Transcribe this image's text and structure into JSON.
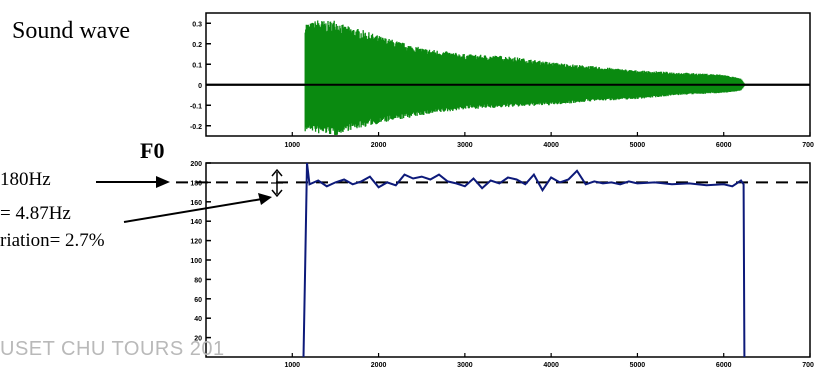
{
  "chart_data": [
    {
      "type": "line",
      "title": "Sound wave",
      "description_only": false,
      "x_ticks": [
        "1000",
        "2000",
        "3000",
        "4000",
        "5000",
        "6000",
        "7000"
      ],
      "y_ticks": [
        "0.3",
        "0.2",
        "0.1",
        "0",
        "-0.1",
        "-0.2"
      ],
      "xlim": [
        0,
        7000
      ],
      "ylim": [
        -0.25,
        0.35
      ],
      "envelope": {
        "x": [
          1150,
          1200,
          1300,
          1400,
          1500,
          1600,
          1800,
          2000,
          2500,
          3000,
          3500,
          4000,
          4500,
          5000,
          5500,
          6000,
          6200,
          6250
        ],
        "upper": [
          0.31,
          0.3,
          0.32,
          0.31,
          0.32,
          0.29,
          0.27,
          0.24,
          0.18,
          0.15,
          0.14,
          0.11,
          0.09,
          0.07,
          0.06,
          0.05,
          0.03,
          0.0
        ],
        "lower": [
          -0.23,
          -0.22,
          -0.24,
          -0.24,
          -0.25,
          -0.23,
          -0.21,
          -0.19,
          -0.15,
          -0.12,
          -0.11,
          -0.1,
          -0.08,
          -0.07,
          -0.05,
          -0.04,
          -0.03,
          0.0
        ]
      },
      "series_color": "#0a8a10"
    },
    {
      "type": "line",
      "title": "F0",
      "x_ticks": [
        "1000",
        "2000",
        "3000",
        "4000",
        "5000",
        "6000",
        "7000"
      ],
      "y_ticks": [
        "200",
        "180",
        "160",
        "140",
        "120",
        "100",
        "80",
        "60",
        "40",
        "20"
      ],
      "xlim": [
        0,
        7000
      ],
      "ylim": [
        0,
        200
      ],
      "mean_line": 180,
      "series": [
        {
          "x": [
            1130,
            1150,
            1170,
            1200,
            1300,
            1400,
            1500,
            1600,
            1700,
            1800,
            1900,
            2000,
            2100,
            2200,
            2300,
            2400,
            2500,
            2600,
            2700,
            2800,
            2900,
            3000,
            3100,
            3200,
            3300,
            3400,
            3500,
            3600,
            3700,
            3800,
            3900,
            4000,
            4100,
            4200,
            4300,
            4400,
            4500,
            4600,
            4700,
            4800,
            4900,
            5000,
            5200,
            5400,
            5600,
            5800,
            6000,
            6100,
            6200,
            6230,
            6240
          ],
          "y": [
            0,
            95,
            200,
            178,
            182,
            176,
            180,
            183,
            178,
            181,
            186,
            175,
            180,
            177,
            188,
            184,
            186,
            183,
            188,
            181,
            179,
            176,
            184,
            174,
            182,
            179,
            185,
            183,
            178,
            188,
            172,
            185,
            180,
            183,
            192,
            178,
            181,
            179,
            180,
            178,
            181,
            179,
            180,
            178,
            179,
            177,
            178,
            176,
            182,
            178,
            0
          ]
        }
      ],
      "series_color": "#0d1a7a"
    }
  ],
  "annotations": {
    "f0_title": "F0",
    "mean_label": "180Hz",
    "sd_label": "= 4.87Hz",
    "variation_label": "riation= 2.7%"
  },
  "footer": "USET CHU TOURS 201"
}
